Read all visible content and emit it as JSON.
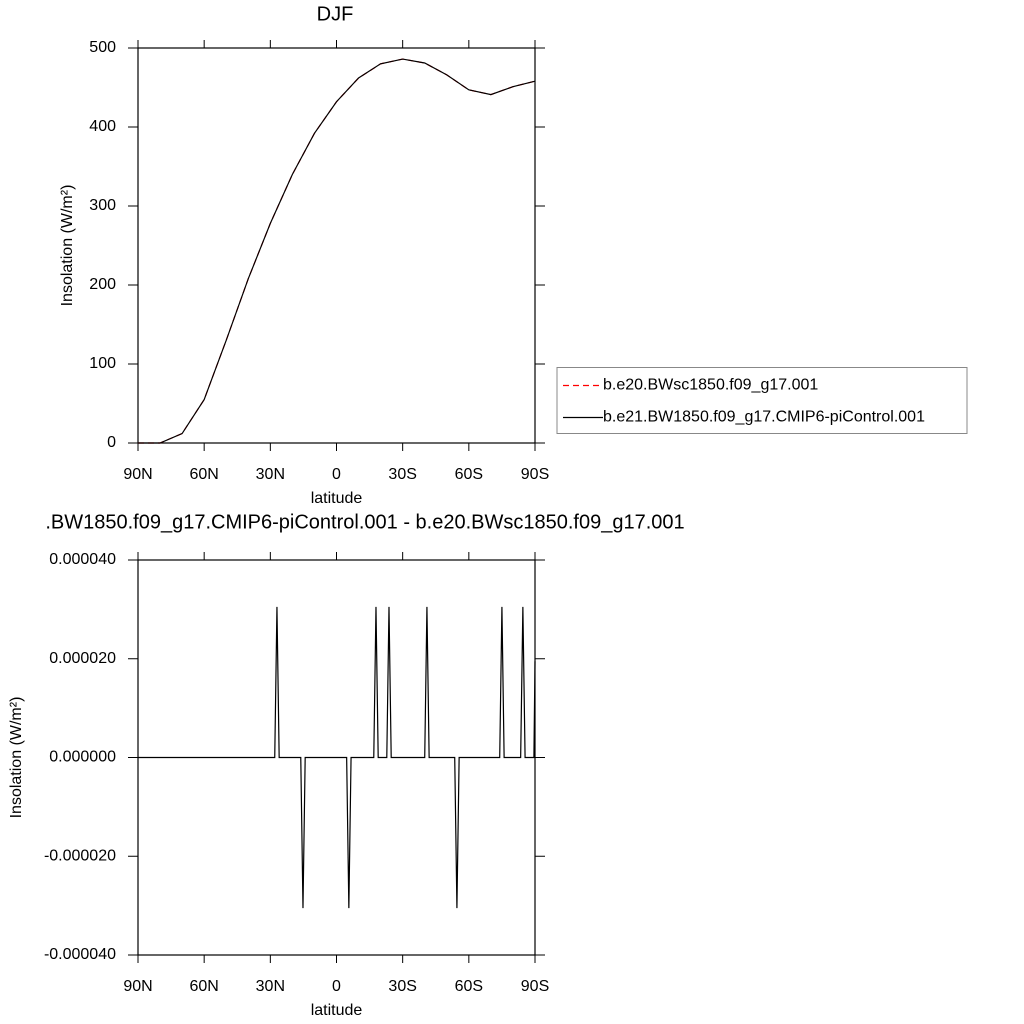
{
  "chart_data": [
    {
      "type": "line",
      "title": "DJF",
      "x_label": "latitude",
      "y_label": "Insolation (W/m²)",
      "x": [
        90,
        80,
        70,
        60,
        50,
        40,
        30,
        20,
        10,
        0,
        -10,
        -20,
        -30,
        -40,
        -50,
        -60,
        -70,
        -80,
        -90
      ],
      "series": [
        {
          "name": "b.e20.BWsc1850.f09_g17.001",
          "color": "#ff0000",
          "linestyle": "dashed",
          "values": [
            0,
            0,
            12,
            55,
            130,
            208,
            278,
            340,
            392,
            432,
            462,
            480,
            486,
            481,
            466,
            447,
            441,
            451,
            458
          ]
        },
        {
          "name": "b.e21.BW1850.f09_g17.CMIP6-piControl.001",
          "color": "#000000",
          "linestyle": "solid",
          "values": [
            0,
            0,
            12,
            55,
            130,
            208,
            278,
            340,
            392,
            432,
            462,
            480,
            486,
            481,
            466,
            447,
            441,
            451,
            458
          ]
        }
      ],
      "xlim": [
        90,
        -90
      ],
      "xticks": [
        {
          "value": 90,
          "label": "90N"
        },
        {
          "value": 60,
          "label": "60N"
        },
        {
          "value": 30,
          "label": "30N"
        },
        0,
        {
          "value": -30,
          "label": "30S"
        },
        {
          "value": -60,
          "label": "60S"
        },
        {
          "value": -90,
          "label": "90S"
        }
      ],
      "ylim": [
        0,
        500
      ],
      "yticks": [
        0,
        100,
        200,
        300,
        400,
        500
      ],
      "legend": "right"
    },
    {
      "type": "line",
      "title": ".BW1850.f09_g17.CMIP6-piControl.001 - b.e20.BWsc1850.f09_g17.001",
      "x_label": "latitude",
      "y_label": "Insolation (W/m²)",
      "x": [
        90,
        28,
        27,
        26,
        16.2,
        15.2,
        14.2,
        -4.6,
        -5.6,
        -6.6,
        -16.9,
        -17.9,
        -18.9,
        -22.8,
        -23.8,
        -24.8,
        -40,
        -41,
        -42,
        -53.6,
        -54.6,
        -55.6,
        -74,
        -75,
        -76,
        -83.5,
        -84.5,
        -85.5,
        -89.5,
        -90
      ],
      "values": [
        0,
        0,
        3.05e-05,
        0,
        0,
        -3.05e-05,
        0,
        0,
        -3.05e-05,
        0,
        0,
        3.05e-05,
        0,
        0,
        3.05e-05,
        0,
        0,
        3.05e-05,
        0,
        0,
        -3.05e-05,
        0,
        0,
        3.05e-05,
        0,
        0,
        3.05e-05,
        0,
        0,
        1.95e-05
      ],
      "color": "#000000",
      "xlim": [
        90,
        -90
      ],
      "xticks": [
        {
          "value": 90,
          "label": "90N"
        },
        {
          "value": 60,
          "label": "60N"
        },
        {
          "value": 30,
          "label": "30N"
        },
        0,
        {
          "value": -30,
          "label": "30S"
        },
        {
          "value": -60,
          "label": "60S"
        },
        {
          "value": -90,
          "label": "90S"
        }
      ],
      "ylim": [
        -4e-05,
        4e-05
      ],
      "yticks": [
        {
          "value": -4e-05,
          "label": "-0.000040"
        },
        {
          "value": -2e-05,
          "label": "-0.000020"
        },
        {
          "value": 0,
          "label": "0.000000"
        },
        {
          "value": 2e-05,
          "label": "0.000020"
        },
        {
          "value": 4e-05,
          "label": "0.000040"
        }
      ]
    }
  ]
}
